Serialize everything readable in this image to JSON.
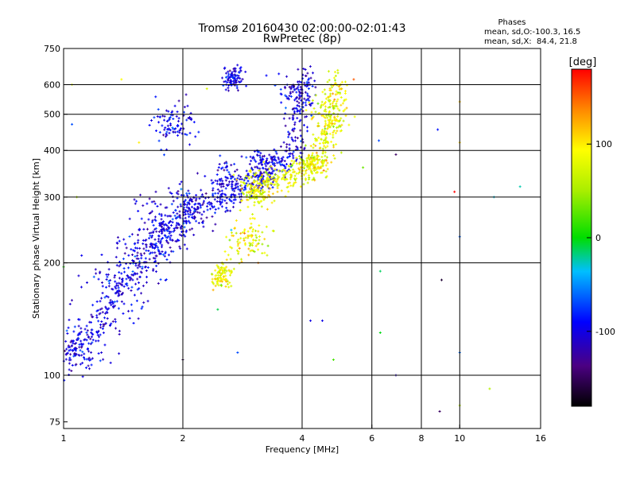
{
  "chart_data": {
    "type": "scatter",
    "title": "Tromsø 20160430 02:00:00-02:01:43",
    "subtitle": "RwPretec (8p)",
    "xlabel": "Frequency [MHz]",
    "ylabel": "Stationary phase Virtual Height [km]",
    "x_scale": "log",
    "y_scale": "log",
    "xlim": [
      1,
      16
    ],
    "ylim": [
      72,
      750
    ],
    "x_ticks": [
      1,
      2,
      4,
      6,
      8,
      10,
      16
    ],
    "y_ticks": [
      75,
      100,
      200,
      300,
      400,
      500,
      600,
      750
    ],
    "x_grid": [
      2,
      4,
      6,
      8,
      10
    ],
    "y_grid": [
      100,
      200,
      300,
      400,
      500,
      600
    ],
    "phases_legend": {
      "heading": "Phases",
      "line_o": "mean, sd,O:-100.3, 16.5",
      "line_x": "mean, sd,X:  84.4, 21.8"
    },
    "colorbar": {
      "label": "[deg]",
      "range": [
        -180,
        180
      ],
      "ticks": [
        {
          "value": 100,
          "label": "100"
        },
        {
          "value": 0,
          "label": "0"
        },
        {
          "value": -100,
          "label": "-100"
        }
      ]
    },
    "series": [
      {
        "mode": "O",
        "phase_mean": -100.3,
        "phase_sd": 16.5,
        "trace": [
          [
            1.02,
            110
          ],
          [
            1.1,
            120
          ],
          [
            1.25,
            140
          ],
          [
            1.4,
            170
          ],
          [
            1.55,
            200
          ],
          [
            1.7,
            225
          ],
          [
            1.9,
            250
          ],
          [
            2.1,
            270
          ],
          [
            2.4,
            290
          ],
          [
            2.7,
            310
          ],
          [
            3.0,
            330
          ],
          [
            3.3,
            345
          ],
          [
            3.6,
            370
          ],
          [
            3.8,
            410
          ],
          [
            3.95,
            520
          ],
          [
            4.05,
            630
          ]
        ],
        "clusters": [
          [
            1.1,
            118,
            0.08
          ],
          [
            1.35,
            165,
            0.1
          ],
          [
            1.6,
            210,
            0.09
          ],
          [
            1.8,
            255,
            0.08
          ],
          [
            2.05,
            280,
            0.06
          ],
          [
            2.6,
            330,
            0.05
          ],
          [
            3.2,
            370,
            0.05
          ],
          [
            3.9,
            560,
            0.06
          ],
          [
            2.7,
            630,
            0.03
          ],
          [
            1.9,
            470,
            0.06
          ]
        ]
      },
      {
        "mode": "X",
        "phase_mean": 84.4,
        "phase_sd": 21.8,
        "trace": [
          [
            2.9,
            300
          ],
          [
            3.2,
            315
          ],
          [
            3.5,
            330
          ],
          [
            3.8,
            345
          ],
          [
            4.1,
            360
          ],
          [
            4.4,
            380
          ],
          [
            4.6,
            420
          ],
          [
            4.75,
            480
          ],
          [
            4.85,
            560
          ],
          [
            4.9,
            620
          ]
        ],
        "clusters": [
          [
            2.95,
            230,
            0.06
          ],
          [
            3.05,
            320,
            0.05
          ],
          [
            4.7,
            500,
            0.06
          ],
          [
            4.3,
            370,
            0.04
          ],
          [
            2.5,
            185,
            0.03
          ]
        ]
      }
    ],
    "sparse_points": [
      [
        1.05,
        600
      ],
      [
        1.05,
        470
      ],
      [
        1.08,
        300
      ],
      [
        1.4,
        620
      ],
      [
        1.55,
        420
      ],
      [
        2.3,
        585
      ],
      [
        2.6,
        650
      ],
      [
        3.1,
        200
      ],
      [
        3.25,
        635
      ],
      [
        4.2,
        140
      ],
      [
        4.5,
        140
      ],
      [
        4.8,
        110
      ],
      [
        5.4,
        620
      ],
      [
        5.7,
        360
      ],
      [
        6.25,
        425
      ],
      [
        6.3,
        190
      ],
      [
        6.3,
        130
      ],
      [
        6.9,
        100
      ],
      [
        6.9,
        390
      ],
      [
        8.8,
        455
      ],
      [
        8.9,
        80
      ],
      [
        9.0,
        180
      ],
      [
        9.7,
        310
      ],
      [
        10.0,
        540
      ],
      [
        10.0,
        420
      ],
      [
        10.0,
        235
      ],
      [
        10.0,
        115
      ],
      [
        10.0,
        83
      ],
      [
        11.9,
        92
      ],
      [
        12.2,
        300
      ],
      [
        14.2,
        320
      ],
      [
        2.65,
        245
      ],
      [
        2.75,
        115
      ],
      [
        2.45,
        150
      ],
      [
        2.0,
        110
      ],
      [
        1.0,
        195
      ]
    ]
  }
}
